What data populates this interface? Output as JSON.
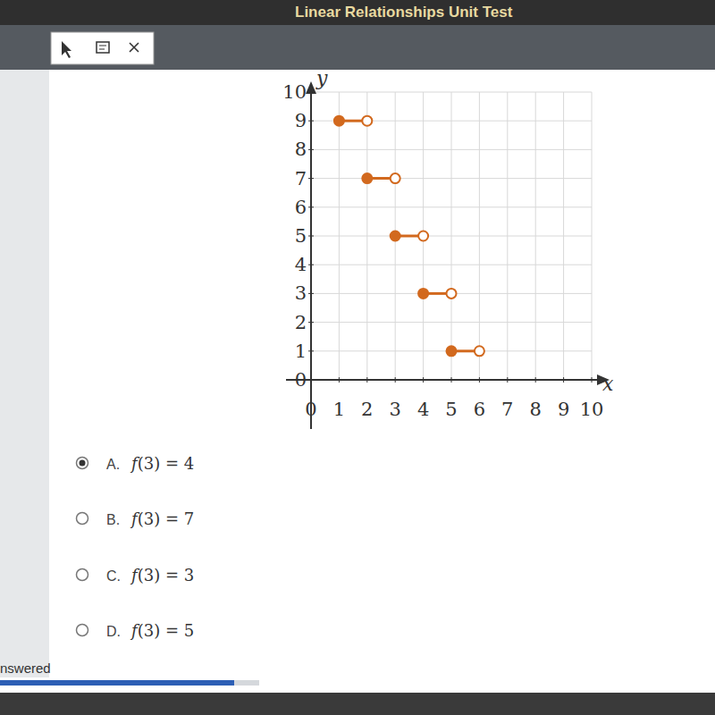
{
  "header": {
    "title": "Linear Relationships Unit Test"
  },
  "chart_data": {
    "type": "step",
    "x": [
      1,
      2,
      3,
      4,
      5
    ],
    "x_end": [
      2,
      3,
      4,
      5,
      6
    ],
    "values": [
      9,
      7,
      5,
      3,
      1
    ],
    "color": "#d2691e",
    "marker": "closed-open",
    "xlim": [
      0,
      10
    ],
    "ylim": [
      0,
      10
    ],
    "xticks": [
      0,
      1,
      2,
      3,
      4,
      5,
      6,
      7,
      8,
      9,
      10
    ],
    "yticks": [
      0,
      1,
      2,
      3,
      4,
      5,
      6,
      7,
      8,
      9,
      10
    ],
    "x_label": "x",
    "y_label": "y",
    "grid": true
  },
  "question": {
    "options": [
      {
        "letter": "A.",
        "text": "f(3) = 4",
        "selected": true
      },
      {
        "letter": "B.",
        "text": "f(3) = 7",
        "selected": false
      },
      {
        "letter": "C.",
        "text": "f(3) = 3",
        "selected": false
      },
      {
        "letter": "D.",
        "text": "f(3) = 5",
        "selected": false
      }
    ]
  },
  "footer": {
    "status": "nswered"
  }
}
